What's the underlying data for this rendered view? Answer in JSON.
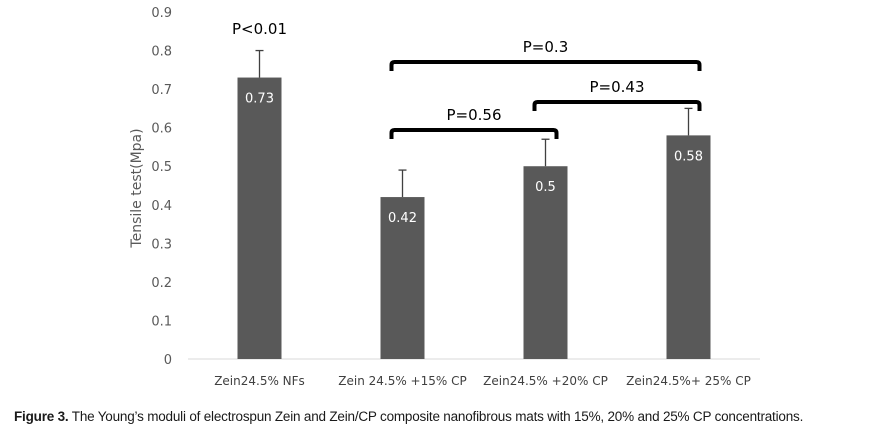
{
  "chart_data": {
    "type": "bar",
    "categories": [
      "Zein24.5%  NFs",
      "Zein 24.5% +15% CP",
      "Zein24.5% +20% CP",
      "Zein24.5%+ 25% CP"
    ],
    "values": [
      0.73,
      0.42,
      0.5,
      0.58
    ],
    "value_labels": [
      "0.73",
      "0.42",
      "0.5",
      "0.58"
    ],
    "error_upper": [
      0.8,
      0.49,
      0.57,
      0.65
    ],
    "ylabel": "Tensile test(Mpa)",
    "xlabel": "",
    "ylim": [
      0,
      0.9
    ],
    "yticks": [
      "0",
      "0.1",
      "0.2",
      "0.3",
      "0.4",
      "0.5",
      "0.6",
      "0.7",
      "0.8",
      "0.9"
    ],
    "bar_color": "#595959",
    "grid": false,
    "annotations": [
      {
        "text": "P<0.01",
        "bracket": null,
        "category": 0
      },
      {
        "text": "P=0.3",
        "bracket": [
          1,
          3
        ],
        "level": "top"
      },
      {
        "text": "P=0.43",
        "bracket": [
          2,
          3
        ],
        "level": "middle"
      },
      {
        "text": "P=0.56",
        "bracket": [
          1,
          2
        ],
        "level": "low"
      }
    ]
  },
  "caption": {
    "figure_label": "Figure 3.",
    "text": " The Young’s moduli of electrospun Zein and Zein/CP composite nanofibrous mats with 15%, 20% and 25% CP concentrations."
  }
}
